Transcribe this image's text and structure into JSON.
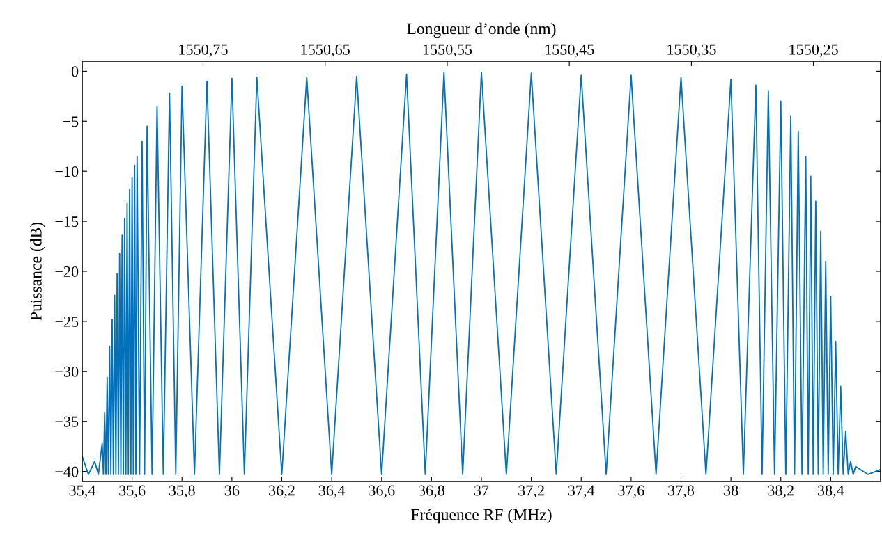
{
  "chart_data": {
    "type": "line",
    "xlabel": "Fréquence RF (MHz)",
    "ylabel": "Puissance (dB)",
    "x2label": "Longueur d’onde (nm)",
    "x": [
      35.4,
      35.425,
      35.45,
      35.465,
      35.48,
      35.485,
      35.49,
      35.495,
      35.5,
      35.505,
      35.51,
      35.515,
      35.52,
      35.525,
      35.53,
      35.535,
      35.54,
      35.545,
      35.55,
      35.555,
      35.56,
      35.565,
      35.57,
      35.575,
      35.58,
      35.585,
      35.59,
      35.595,
      35.6,
      35.605,
      35.61,
      35.615,
      35.62,
      35.63,
      35.64,
      35.65,
      35.66,
      35.68,
      35.7,
      35.725,
      35.75,
      35.775,
      35.8,
      35.85,
      35.9,
      35.95,
      36.0,
      36.05,
      36.1,
      36.2,
      36.3,
      36.4,
      36.5,
      36.6,
      36.7,
      36.775,
      36.85,
      36.925,
      37.0,
      37.1,
      37.2,
      37.3,
      37.4,
      37.5,
      37.6,
      37.7,
      37.8,
      37.9,
      38.0,
      38.05,
      38.1,
      38.125,
      38.15,
      38.175,
      38.2,
      38.22,
      38.24,
      38.255,
      38.27,
      38.285,
      38.3,
      38.31,
      38.32,
      38.33,
      38.34,
      38.35,
      38.36,
      38.37,
      38.38,
      38.39,
      38.4,
      38.41,
      38.42,
      38.43,
      38.44,
      38.45,
      38.46,
      38.47,
      38.48,
      38.49,
      38.5,
      38.55,
      38.6
    ],
    "series": [
      {
        "color": "#0072bd",
        "values": [
          -38.5,
          -40.3,
          -39,
          -40.3,
          -37.2,
          -40.3,
          -34.1,
          -40.3,
          -30.6,
          -40.3,
          -27.5,
          -40.3,
          -24.8,
          -40.3,
          -22.4,
          -40.3,
          -20.2,
          -40.3,
          -18.2,
          -40.3,
          -16.4,
          -40.3,
          -14.7,
          -40.3,
          -13.2,
          -40.3,
          -11.8,
          -40.3,
          -10.6,
          -40.3,
          -9.4,
          -40.3,
          -8.5,
          -40.3,
          -7,
          -40.3,
          -5.5,
          -40.3,
          -3.5,
          -40.3,
          -2.2,
          -40.3,
          -1.5,
          -40.3,
          -1.0,
          -40.3,
          -0.7,
          -40.3,
          -0.6,
          -40.3,
          -0.6,
          -40.3,
          -0.5,
          -40.3,
          -0.3,
          -40.3,
          -0.1,
          -40.3,
          -0.1,
          -40.3,
          -0.2,
          -40.3,
          -0.4,
          -40.3,
          -0.4,
          -40.3,
          -0.6,
          -40.3,
          -0.8,
          -40.3,
          -1.4,
          -40.3,
          -2.0,
          -40.3,
          -3.0,
          -40.3,
          -4.5,
          -40.3,
          -6,
          -40.3,
          -8.5,
          -40.3,
          -10.5,
          -40.3,
          -13,
          -40.3,
          -16,
          -40.3,
          -19,
          -40.3,
          -22.5,
          -40.3,
          -27,
          -40.3,
          -31.5,
          -40.3,
          -36,
          -40.3,
          -39,
          -40.3,
          -39.5,
          -40.3,
          -39.8
        ]
      }
    ],
    "xlim": [
      35.4,
      38.6
    ],
    "ylim": [
      -41,
      1
    ],
    "xticks": [
      {
        "value": 35.4,
        "label": "35,4"
      },
      {
        "value": 35.6,
        "label": "35,6"
      },
      {
        "value": 35.8,
        "label": "35,8"
      },
      36,
      {
        "value": 36.2,
        "label": "36,2"
      },
      {
        "value": 36.4,
        "label": "36,4"
      },
      {
        "value": 36.6,
        "label": "36,6"
      },
      {
        "value": 36.8,
        "label": "36,8"
      },
      37,
      {
        "value": 37.2,
        "label": "37,2"
      },
      {
        "value": 37.4,
        "label": "37,4"
      },
      {
        "value": 37.6,
        "label": "37,6"
      },
      {
        "value": 37.8,
        "label": "37,8"
      },
      38,
      {
        "value": 38.2,
        "label": "38,2"
      },
      {
        "value": 38.4,
        "label": "38,4"
      }
    ],
    "yticks": [
      {
        "value": 0,
        "label": "0"
      },
      {
        "value": -5,
        "label": "−5"
      },
      {
        "value": -10,
        "label": "−10"
      },
      {
        "value": -15,
        "label": "−15"
      },
      {
        "value": -20,
        "label": "−20"
      },
      {
        "value": -25,
        "label": "−25"
      },
      {
        "value": -30,
        "label": "−30"
      },
      {
        "value": -35,
        "label": "−35"
      },
      {
        "value": -40,
        "label": "−40"
      }
    ],
    "x2lim": [
      1550.849,
      1550.195
    ],
    "x2ticks": [
      {
        "value": 1550.75,
        "label": "1550,75"
      },
      {
        "value": 1550.65,
        "label": "1550,65"
      },
      {
        "value": 1550.55,
        "label": "1550,55"
      },
      {
        "value": 1550.45,
        "label": "1550,45"
      },
      {
        "value": 1550.35,
        "label": "1550,35"
      },
      {
        "value": 1550.25,
        "label": "1550,25"
      }
    ],
    "grid": false,
    "legend": false,
    "marker": "none",
    "line_style": "solid"
  }
}
